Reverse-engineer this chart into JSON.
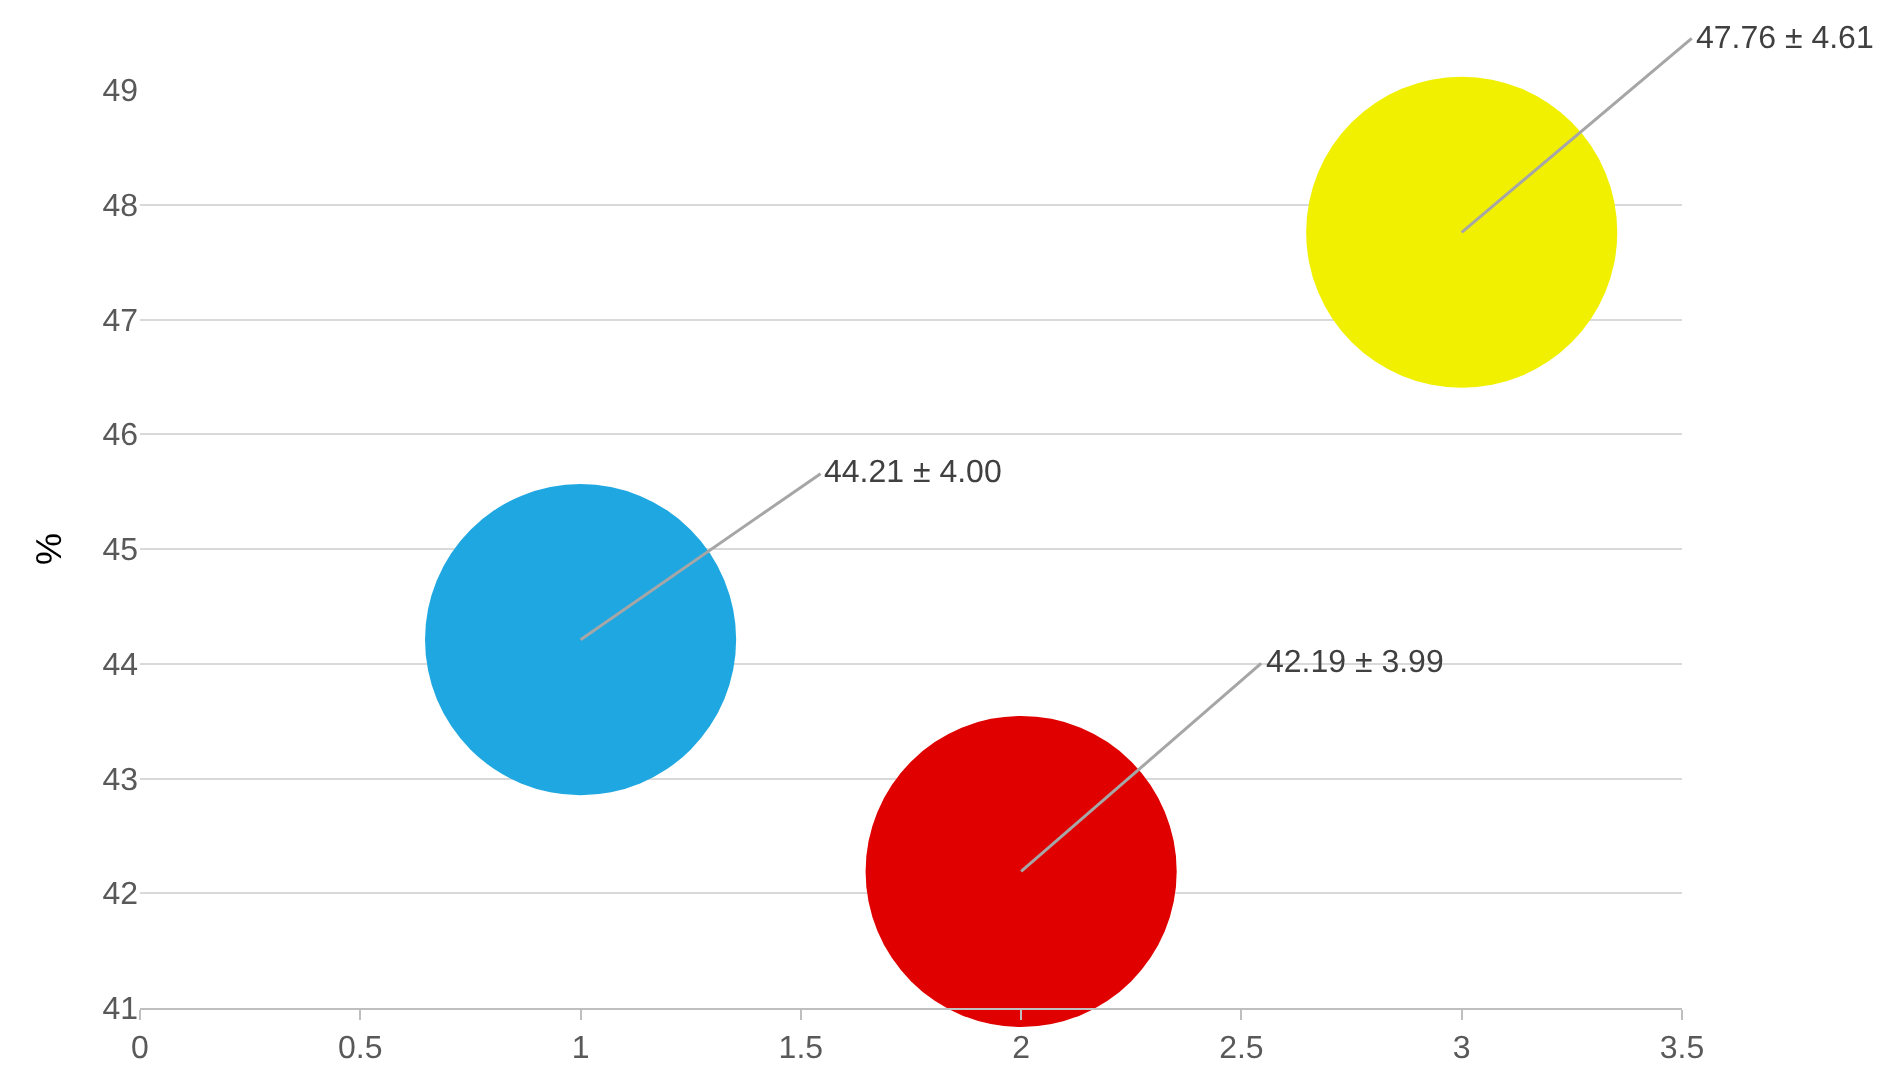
{
  "chart_data": {
    "type": "bubble",
    "ylabel": "%",
    "x": [
      1,
      2,
      3
    ],
    "values": [
      44.21,
      42.19,
      47.76
    ],
    "sizes": [
      1,
      1,
      1
    ],
    "colors": [
      "#1ea7e0",
      "#e00000",
      "#f0f000"
    ],
    "value_labels": [
      "44.21 ± 4.00",
      "42.19 ± 3.99",
      "47.76 ± 4.61"
    ],
    "xlim": [
      0,
      3.5
    ],
    "xticks": [
      0,
      0.5,
      1,
      1.5,
      2,
      2.5,
      3,
      3.5
    ],
    "ylim": [
      41,
      49
    ],
    "yticks": [
      41,
      42,
      43,
      44,
      45,
      46,
      47,
      48,
      49
    ],
    "grid": "y",
    "legend": false
  }
}
